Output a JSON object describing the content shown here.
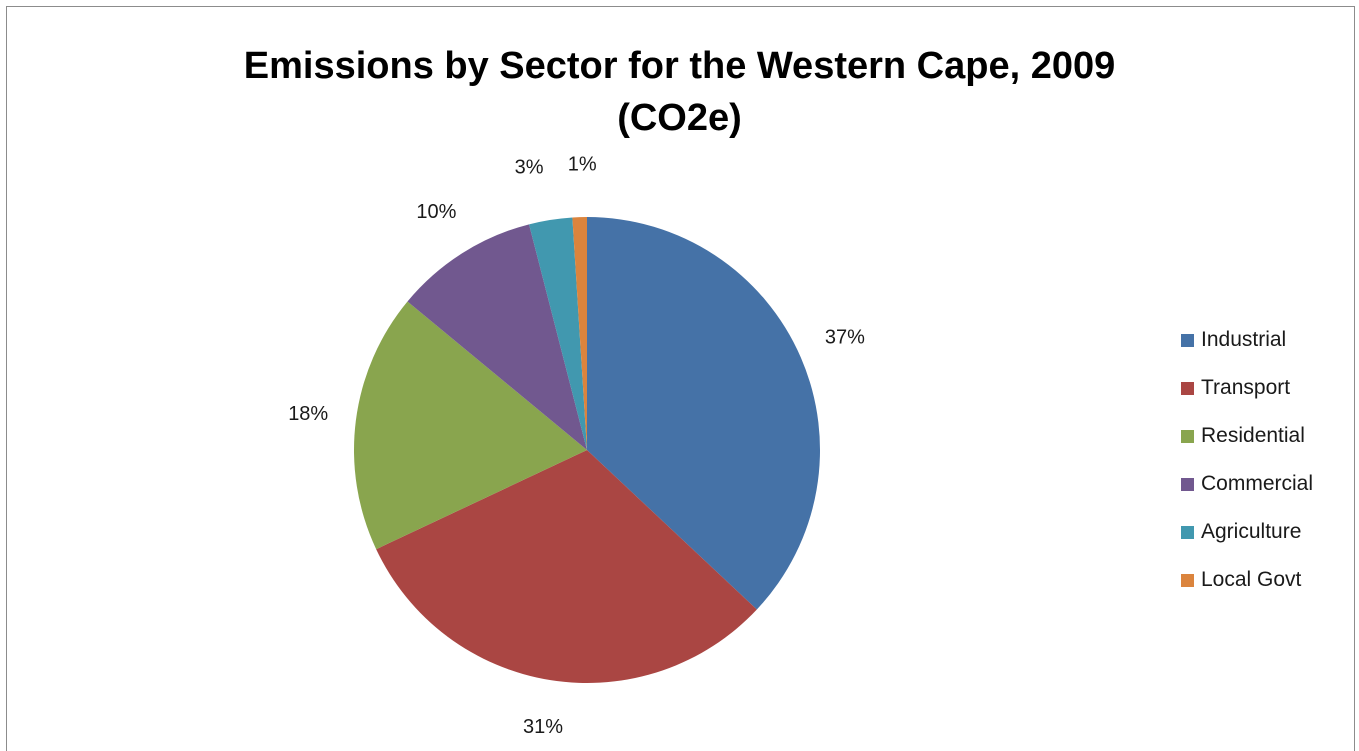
{
  "title_line1": "Emissions by Sector for the Western Cape, 2009",
  "title_line2": "(CO2e)",
  "chart_data": {
    "type": "pie",
    "title": "Emissions by Sector for the Western Cape, 2009 (CO2e)",
    "categories": [
      "Industrial",
      "Transport",
      "Residential",
      "Commercial",
      "Agriculture",
      "Local Govt"
    ],
    "values": [
      37,
      31,
      18,
      10,
      3,
      1
    ],
    "labels": [
      "37%",
      "31%",
      "18%",
      "10%",
      "3%",
      "1%"
    ],
    "colors": [
      "#4572a7",
      "#aa4643",
      "#89a54e",
      "#71588f",
      "#4198af",
      "#db843d"
    ],
    "legend_position": "right",
    "start_angle": "12 o'clock",
    "direction": "clockwise"
  },
  "legend": [
    {
      "label": "Industrial",
      "color": "#4572a7"
    },
    {
      "label": "Transport",
      "color": "#aa4643"
    },
    {
      "label": "Residential",
      "color": "#89a54e"
    },
    {
      "label": "Commercial",
      "color": "#71588f"
    },
    {
      "label": "Agriculture",
      "color": "#4198af"
    },
    {
      "label": "Local Govt",
      "color": "#db843d"
    }
  ]
}
